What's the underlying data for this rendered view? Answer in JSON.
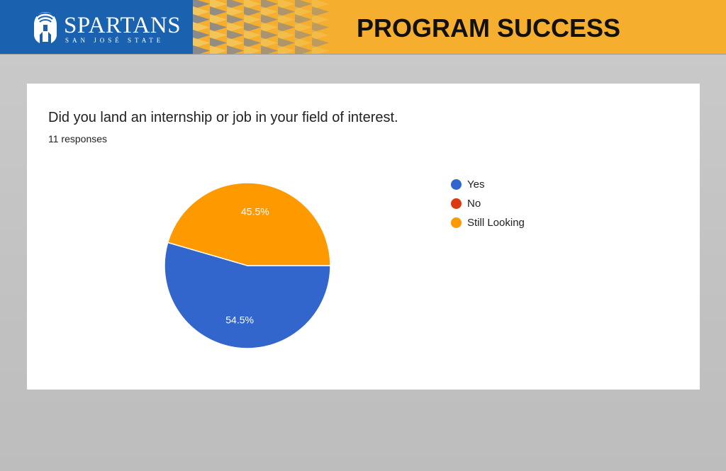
{
  "header": {
    "brand_name": "SPARTANS",
    "brand_sub": "SAN JOSÉ STATE",
    "page_title": "PROGRAM SUCCESS",
    "colors": {
      "blue": "#1a62b0",
      "gold": "#f5ae2d",
      "pattern_light": "#f2c65a",
      "pattern_gray": "#8a8a8a"
    }
  },
  "chart_data": {
    "type": "pie",
    "title": "Did you land an internship or job in your field of interest.",
    "subtitle": "11 responses",
    "categories": [
      "Yes",
      "No",
      "Still Looking"
    ],
    "values": [
      54.5,
      0,
      45.5
    ],
    "value_labels": [
      "54.5%",
      "",
      "45.5%"
    ],
    "colors": [
      "#3366cc",
      "#dc3912",
      "#ff9900"
    ],
    "legend_position": "right"
  }
}
